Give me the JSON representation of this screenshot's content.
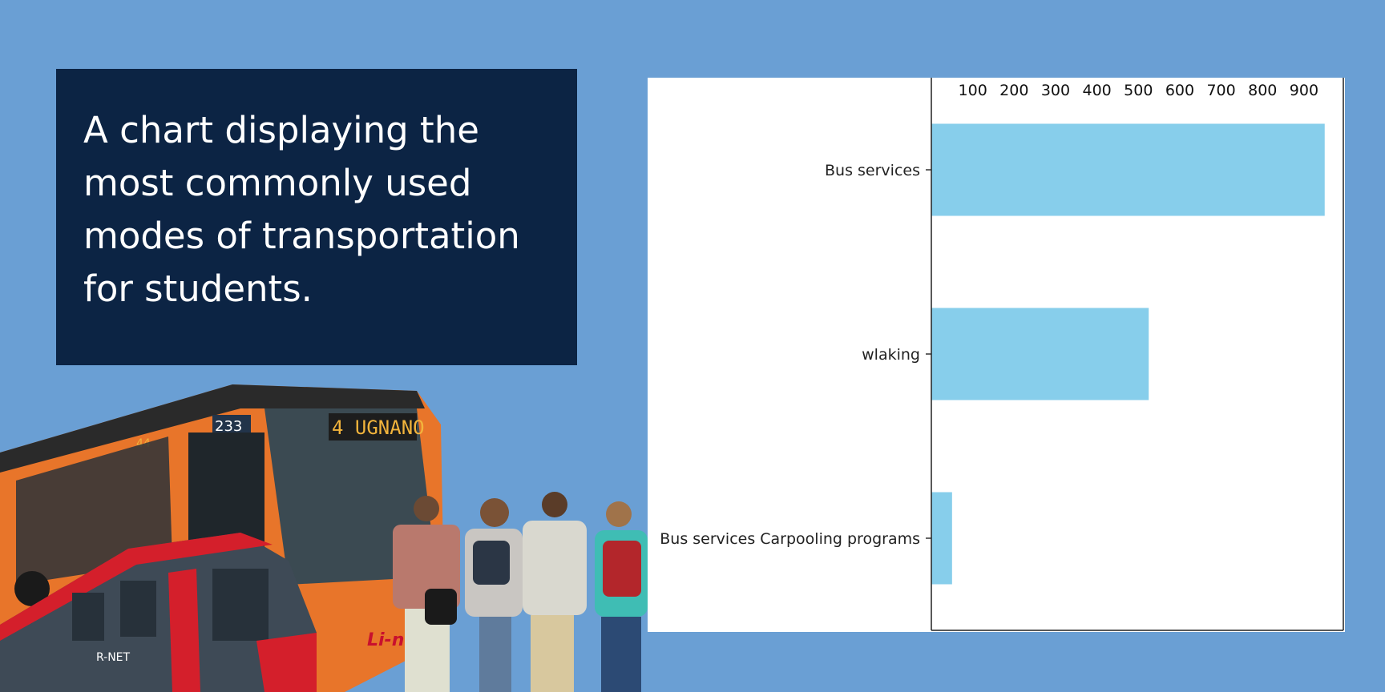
{
  "slide": {
    "title": "A chart displaying the most commonly used modes of transportation for students.",
    "background_color": "#6a9fd4",
    "title_box_color": "#0c2444"
  },
  "illustration": {
    "bus_route": "4 UGNANO",
    "bus_number": "233",
    "bus_side_number": "44",
    "bus_brand": "Li-nea",
    "tram_brand": "R-NET"
  },
  "chart_data": {
    "type": "bar",
    "orientation": "horizontal",
    "categories": [
      "Bus services",
      "wlaking",
      "Bus services Carpooling programs"
    ],
    "values": [
      950,
      525,
      50
    ],
    "xlim": [
      0,
      995
    ],
    "x_ticks": [
      100,
      200,
      300,
      400,
      500,
      600,
      700,
      800,
      900
    ],
    "x_axis_position": "top",
    "bar_color": "#87ceeb",
    "grid": false,
    "legend": "none"
  }
}
